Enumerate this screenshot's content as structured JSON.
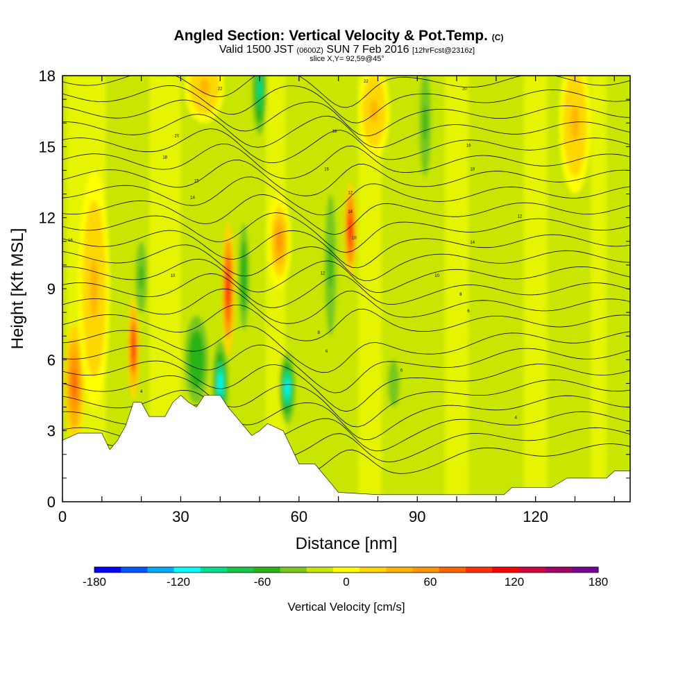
{
  "title": {
    "main": "Angled Section: Vertical Velocity & Pot.Temp.",
    "copyright": "(C)",
    "valid_prefix": "Valid 1500 JST",
    "utc": "(0600Z)",
    "valid_date": "SUN 7 Feb 2016",
    "forecast": "[12hrFcst@2316z]",
    "slice": "slice X,Y= 92,59@45°"
  },
  "chart_data": {
    "type": "heatmap",
    "xlabel": "Distance [nm]",
    "ylabel": "Height [Kft MSL]",
    "xlim": [
      0,
      144
    ],
    "ylim": [
      0,
      18
    ],
    "x_ticks": [
      0,
      30,
      60,
      90,
      120
    ],
    "y_ticks": [
      0,
      3,
      6,
      9,
      12,
      15,
      18
    ],
    "colorbar": {
      "label": "Vertical Velocity [cm/s]",
      "range": [
        -180,
        180
      ],
      "ticks": [
        -180,
        -120,
        -60,
        0,
        60,
        120,
        180
      ],
      "levels": [
        -180,
        -160,
        -140,
        -120,
        -100,
        -80,
        -60,
        -40,
        -20,
        0,
        20,
        40,
        60,
        80,
        100,
        120,
        140,
        160,
        180
      ],
      "colors": [
        "#0000ff",
        "#0055ff",
        "#00aaff",
        "#00ffff",
        "#00e08c",
        "#19c846",
        "#28b414",
        "#78c81e",
        "#c8e600",
        "#ffff00",
        "#ffd700",
        "#ffb400",
        "#ff9600",
        "#ff6400",
        "#ff3200",
        "#ff0000",
        "#d2003c",
        "#a00064",
        "#780096"
      ]
    },
    "terrain_kft": [
      [
        0,
        2.6
      ],
      [
        4,
        2.9
      ],
      [
        10,
        2.9
      ],
      [
        12,
        2.2
      ],
      [
        14,
        2.6
      ],
      [
        16,
        3.2
      ],
      [
        18,
        4.2
      ],
      [
        20,
        4.2
      ],
      [
        22,
        3.6
      ],
      [
        26,
        3.6
      ],
      [
        28,
        4.2
      ],
      [
        30,
        4.5
      ],
      [
        32,
        4.2
      ],
      [
        34,
        4.0
      ],
      [
        36,
        4.5
      ],
      [
        40,
        4.5
      ],
      [
        42,
        4.0
      ],
      [
        46,
        3.2
      ],
      [
        48,
        2.8
      ],
      [
        50,
        3.0
      ],
      [
        52,
        3.3
      ],
      [
        56,
        3.0
      ],
      [
        58,
        2.3
      ],
      [
        60,
        1.6
      ],
      [
        64,
        1.6
      ],
      [
        66,
        1.2
      ],
      [
        68,
        0.8
      ],
      [
        70,
        0.4
      ],
      [
        80,
        0.3
      ],
      [
        90,
        0.3
      ],
      [
        100,
        0.3
      ],
      [
        112,
        0.3
      ],
      [
        114,
        0.6
      ],
      [
        124,
        0.6
      ],
      [
        128,
        1.0
      ],
      [
        138,
        1.0
      ],
      [
        140,
        1.3
      ],
      [
        144,
        1.3
      ]
    ],
    "updrafts": [
      {
        "x": 3,
        "z": 5.0,
        "w": 2.5,
        "h": 2.5,
        "v": 80
      },
      {
        "x": 18,
        "z": 6.5,
        "w": 1.5,
        "h": 2.2,
        "v": 110
      },
      {
        "x": 42,
        "z": 9.0,
        "w": 1.6,
        "h": 2.8,
        "v": 120
      },
      {
        "x": 55,
        "z": 11.0,
        "w": 3,
        "h": 2,
        "v": 60
      },
      {
        "x": 73,
        "z": 11.5,
        "w": 1.6,
        "h": 2.0,
        "v": 130
      },
      {
        "x": 36,
        "z": 17.5,
        "w": 5,
        "h": 1.5,
        "v": 50
      },
      {
        "x": 79,
        "z": 16.5,
        "w": 4,
        "h": 2,
        "v": 40
      },
      {
        "x": 130,
        "z": 16.0,
        "w": 4,
        "h": 3,
        "v": 40
      },
      {
        "x": 8,
        "z": 9,
        "w": 4,
        "h": 5,
        "v": 40
      }
    ],
    "downdrafts": [
      {
        "x": 40,
        "z": 5.0,
        "w": 2,
        "h": 1.8,
        "v": -120
      },
      {
        "x": 57,
        "z": 4.8,
        "w": 2,
        "h": 1.5,
        "v": -110
      },
      {
        "x": 34,
        "z": 6.0,
        "w": 4,
        "h": 2.5,
        "v": -60
      },
      {
        "x": 46,
        "z": 9.5,
        "w": 1.8,
        "h": 3,
        "v": -60
      },
      {
        "x": 50,
        "z": 17.5,
        "w": 1.8,
        "h": 2,
        "v": -90
      },
      {
        "x": 68,
        "z": 10.0,
        "w": 2,
        "h": 4,
        "v": -50
      },
      {
        "x": 92,
        "z": 16.0,
        "w": 2,
        "h": 3,
        "v": -50
      },
      {
        "x": 20,
        "z": 9.5,
        "w": 2,
        "h": 2,
        "v": -50
      },
      {
        "x": 84,
        "z": 5.0,
        "w": 3,
        "h": 2,
        "v": -40
      }
    ],
    "theta_levels": [
      4,
      6,
      8,
      10,
      12,
      14,
      16,
      18,
      20,
      22,
      24,
      26,
      28,
      30,
      32,
      34,
      36,
      38,
      40,
      42,
      44,
      46,
      48,
      50
    ],
    "contour_labels": [
      {
        "x": 2,
        "z": 11.0,
        "text": "16"
      },
      {
        "x": 28,
        "z": 9.5,
        "text": "10"
      },
      {
        "x": 20,
        "z": 4.6,
        "text": "4"
      },
      {
        "x": 33,
        "z": 12.8,
        "text": "14"
      },
      {
        "x": 34,
        "z": 13.5,
        "text": "15"
      },
      {
        "x": 26,
        "z": 14.5,
        "text": "18"
      },
      {
        "x": 29,
        "z": 15.4,
        "text": "20"
      },
      {
        "x": 40,
        "z": 17.4,
        "text": "22"
      },
      {
        "x": 67,
        "z": 14.0,
        "text": "16"
      },
      {
        "x": 69,
        "z": 15.6,
        "text": "18"
      },
      {
        "x": 73,
        "z": 13.0,
        "text": "12"
      },
      {
        "x": 73,
        "z": 12.2,
        "text": "14"
      },
      {
        "x": 74,
        "z": 11.1,
        "text": "10"
      },
      {
        "x": 66,
        "z": 9.6,
        "text": "12"
      },
      {
        "x": 65,
        "z": 7.1,
        "text": "8"
      },
      {
        "x": 67,
        "z": 6.3,
        "text": "6"
      },
      {
        "x": 86,
        "z": 5.5,
        "text": "6"
      },
      {
        "x": 95,
        "z": 9.5,
        "text": "10"
      },
      {
        "x": 101,
        "z": 8.7,
        "text": "8"
      },
      {
        "x": 103,
        "z": 8.0,
        "text": "6"
      },
      {
        "x": 104,
        "z": 14.0,
        "text": "18"
      },
      {
        "x": 103,
        "z": 15.0,
        "text": "16"
      },
      {
        "x": 102,
        "z": 17.4,
        "text": "20"
      },
      {
        "x": 77,
        "z": 17.7,
        "text": "22"
      },
      {
        "x": 116,
        "z": 12.0,
        "text": "12"
      },
      {
        "x": 104,
        "z": 10.9,
        "text": "14"
      },
      {
        "x": 115,
        "z": 3.5,
        "text": "4"
      }
    ]
  }
}
